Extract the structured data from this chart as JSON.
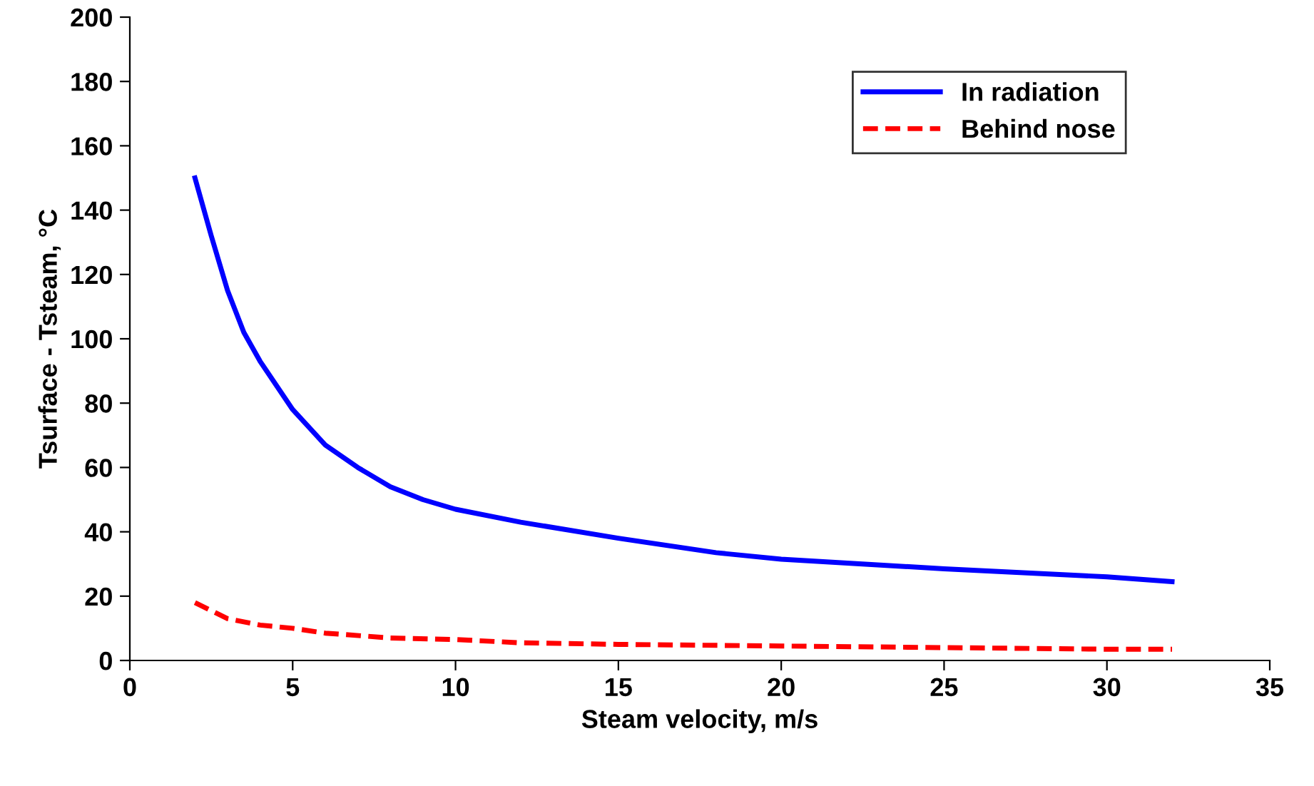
{
  "chart_data": {
    "type": "line",
    "xlabel": "Steam velocity, m/s",
    "ylabel": "Tsurface - Tsteam, °C",
    "xlim": [
      0,
      35
    ],
    "xticks": [
      0,
      5,
      10,
      15,
      20,
      25,
      30,
      35
    ],
    "ylim": [
      0,
      200
    ],
    "yticks": [
      0,
      20,
      40,
      60,
      80,
      100,
      120,
      140,
      160,
      180,
      200
    ],
    "grid": false,
    "legend": "top right",
    "marker": "none",
    "series": [
      {
        "name": "In radiation",
        "color": "#0000ff",
        "line_style": "solid",
        "x": [
          2,
          2.5,
          3,
          3.5,
          4,
          5,
          6,
          7,
          8,
          9,
          10,
          12,
          15,
          18,
          20,
          25,
          30,
          32
        ],
        "values": [
          150,
          132,
          115,
          102,
          93,
          78,
          67,
          60,
          54,
          50,
          47,
          43,
          38,
          33.5,
          31.5,
          28.5,
          26,
          24.5
        ]
      },
      {
        "name": "Behind nose",
        "color": "#ff0000",
        "line_style": "dashed",
        "x": [
          2,
          3,
          4,
          5,
          6,
          8,
          10,
          12,
          15,
          20,
          25,
          30,
          32
        ],
        "values": [
          18,
          13,
          11,
          10,
          8.5,
          7,
          6.5,
          5.5,
          5,
          4.5,
          4,
          3.5,
          3.5
        ]
      }
    ]
  }
}
